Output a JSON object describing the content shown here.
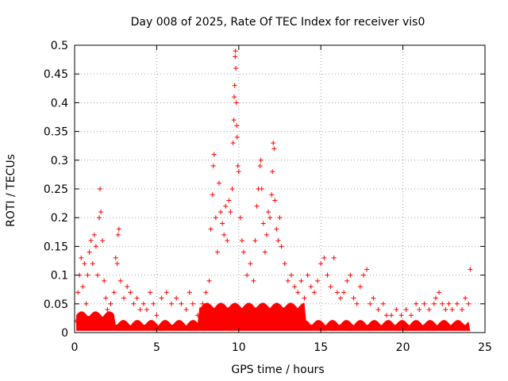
{
  "chart_data": {
    "type": "scatter",
    "title": "Day 008 of 2025, Rate Of TEC Index for receiver vis0",
    "xlabel": "GPS time / hours",
    "ylabel": "ROTI / TECUs",
    "xlim": [
      0,
      25
    ],
    "ylim": [
      0,
      0.5
    ],
    "x_ticks": [
      "0",
      "5",
      "10",
      "15",
      "20",
      "25"
    ],
    "y_ticks": [
      "0",
      "0.05",
      "0.1",
      "0.15",
      "0.2",
      "0.25",
      "0.3",
      "0.35",
      "0.4",
      "0.45",
      "0.5"
    ],
    "x_tick_values": [
      0,
      5,
      10,
      15,
      20,
      25
    ],
    "y_tick_values": [
      0,
      0.05,
      0.1,
      0.15,
      0.2,
      0.25,
      0.3,
      0.35,
      0.4,
      0.45,
      0.5
    ],
    "grid": true,
    "marker": "+",
    "color": "#ff0000",
    "series": [
      {
        "values": [
          [
            0.1,
            0.02
          ],
          [
            0.2,
            0.07
          ],
          [
            0.3,
            0.1
          ],
          [
            0.4,
            0.13
          ],
          [
            0.5,
            0.08
          ],
          [
            0.6,
            0.12
          ],
          [
            0.7,
            0.05
          ],
          [
            0.8,
            0.1
          ],
          [
            0.9,
            0.14
          ],
          [
            1.0,
            0.16
          ],
          [
            1.1,
            0.12
          ],
          [
            1.2,
            0.17
          ],
          [
            1.3,
            0.15
          ],
          [
            1.4,
            0.1
          ],
          [
            1.5,
            0.2
          ],
          [
            1.55,
            0.25
          ],
          [
            1.6,
            0.21
          ],
          [
            1.7,
            0.16
          ],
          [
            1.8,
            0.09
          ],
          [
            1.9,
            0.06
          ],
          [
            2.0,
            0.04
          ],
          [
            2.2,
            0.05
          ],
          [
            2.4,
            0.07
          ],
          [
            2.5,
            0.13
          ],
          [
            2.6,
            0.12
          ],
          [
            2.7,
            0.18
          ],
          [
            2.65,
            0.17
          ],
          [
            2.8,
            0.09
          ],
          [
            3.0,
            0.06
          ],
          [
            3.2,
            0.08
          ],
          [
            3.4,
            0.07
          ],
          [
            3.6,
            0.05
          ],
          [
            3.8,
            0.06
          ],
          [
            4.0,
            0.04
          ],
          [
            4.2,
            0.05
          ],
          [
            4.4,
            0.04
          ],
          [
            4.6,
            0.07
          ],
          [
            4.8,
            0.05
          ],
          [
            5.0,
            0.03
          ],
          [
            5.3,
            0.06
          ],
          [
            5.6,
            0.07
          ],
          [
            5.9,
            0.05
          ],
          [
            6.2,
            0.06
          ],
          [
            6.5,
            0.05
          ],
          [
            6.8,
            0.04
          ],
          [
            7.0,
            0.07
          ],
          [
            7.2,
            0.05
          ],
          [
            7.5,
            0.03
          ],
          [
            7.8,
            0.05
          ],
          [
            8.0,
            0.07
          ],
          [
            8.2,
            0.09
          ],
          [
            8.3,
            0.18
          ],
          [
            8.4,
            0.24
          ],
          [
            8.45,
            0.29
          ],
          [
            8.5,
            0.31
          ],
          [
            8.6,
            0.2
          ],
          [
            8.7,
            0.14
          ],
          [
            8.8,
            0.26
          ],
          [
            8.9,
            0.21
          ],
          [
            9.0,
            0.19
          ],
          [
            9.1,
            0.17
          ],
          [
            9.2,
            0.22
          ],
          [
            9.3,
            0.16
          ],
          [
            9.4,
            0.23
          ],
          [
            9.5,
            0.21
          ],
          [
            9.6,
            0.25
          ],
          [
            9.65,
            0.33
          ],
          [
            9.7,
            0.37
          ],
          [
            9.72,
            0.41
          ],
          [
            9.75,
            0.43
          ],
          [
            9.78,
            0.48
          ],
          [
            9.8,
            0.49
          ],
          [
            9.82,
            0.46
          ],
          [
            9.85,
            0.4
          ],
          [
            9.88,
            0.36
          ],
          [
            9.9,
            0.34
          ],
          [
            9.95,
            0.29
          ],
          [
            10.0,
            0.28
          ],
          [
            10.1,
            0.2
          ],
          [
            10.2,
            0.16
          ],
          [
            10.3,
            0.14
          ],
          [
            10.5,
            0.1
          ],
          [
            10.7,
            0.12
          ],
          [
            10.9,
            0.09
          ],
          [
            11.0,
            0.16
          ],
          [
            11.1,
            0.22
          ],
          [
            11.2,
            0.25
          ],
          [
            11.3,
            0.29
          ],
          [
            11.35,
            0.3
          ],
          [
            11.4,
            0.25
          ],
          [
            11.5,
            0.19
          ],
          [
            11.6,
            0.14
          ],
          [
            11.7,
            0.17
          ],
          [
            11.8,
            0.21
          ],
          [
            11.9,
            0.2
          ],
          [
            12.0,
            0.24
          ],
          [
            12.05,
            0.28
          ],
          [
            12.1,
            0.33
          ],
          [
            12.15,
            0.32
          ],
          [
            12.2,
            0.23
          ],
          [
            12.3,
            0.18
          ],
          [
            12.4,
            0.16
          ],
          [
            12.5,
            0.2
          ],
          [
            12.6,
            0.15
          ],
          [
            12.8,
            0.12
          ],
          [
            13.0,
            0.09
          ],
          [
            13.2,
            0.1
          ],
          [
            13.4,
            0.08
          ],
          [
            13.6,
            0.07
          ],
          [
            13.8,
            0.09
          ],
          [
            14.0,
            0.06
          ],
          [
            14.2,
            0.1
          ],
          [
            14.4,
            0.08
          ],
          [
            14.6,
            0.07
          ],
          [
            14.8,
            0.09
          ],
          [
            15.0,
            0.12
          ],
          [
            15.2,
            0.13
          ],
          [
            15.4,
            0.1
          ],
          [
            15.6,
            0.08
          ],
          [
            15.8,
            0.13
          ],
          [
            16.0,
            0.07
          ],
          [
            16.2,
            0.06
          ],
          [
            16.4,
            0.07
          ],
          [
            16.6,
            0.09
          ],
          [
            16.8,
            0.1
          ],
          [
            17.0,
            0.06
          ],
          [
            17.2,
            0.05
          ],
          [
            17.4,
            0.08
          ],
          [
            17.6,
            0.1
          ],
          [
            17.8,
            0.11
          ],
          [
            18.0,
            0.05
          ],
          [
            18.2,
            0.06
          ],
          [
            18.5,
            0.04
          ],
          [
            18.8,
            0.05
          ],
          [
            19.0,
            0.03
          ],
          [
            19.3,
            0.03
          ],
          [
            19.6,
            0.04
          ],
          [
            19.9,
            0.03
          ],
          [
            20.2,
            0.04
          ],
          [
            20.5,
            0.03
          ],
          [
            20.8,
            0.05
          ],
          [
            21.0,
            0.04
          ],
          [
            21.3,
            0.05
          ],
          [
            21.6,
            0.04
          ],
          [
            21.9,
            0.05
          ],
          [
            22.0,
            0.06
          ],
          [
            22.2,
            0.07
          ],
          [
            22.4,
            0.05
          ],
          [
            22.6,
            0.04
          ],
          [
            22.8,
            0.05
          ],
          [
            23.0,
            0.04
          ],
          [
            23.3,
            0.05
          ],
          [
            23.6,
            0.04
          ],
          [
            23.8,
            0.06
          ],
          [
            24.0,
            0.05
          ],
          [
            24.1,
            0.11
          ]
        ]
      }
    ]
  }
}
